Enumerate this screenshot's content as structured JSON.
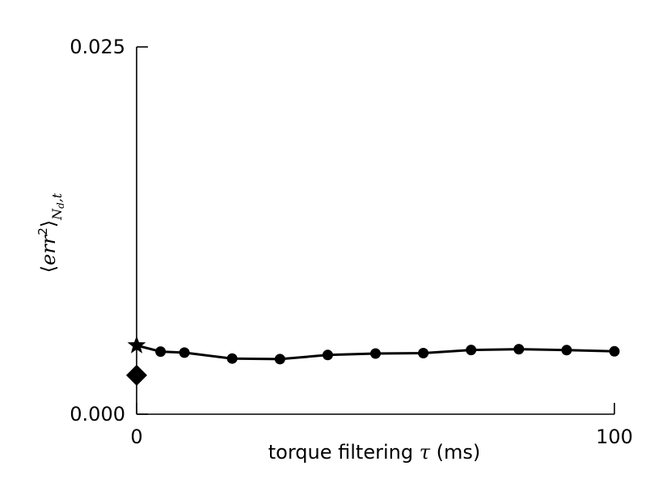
{
  "chart_data": {
    "type": "line",
    "title": "",
    "xlabel": {
      "text": "torque filtering ",
      "symbol": "τ",
      "unit": " (ms)"
    },
    "ylabel": {
      "open": "⟨",
      "base": "err",
      "sup": "2",
      "close": "⟩",
      "sub": "N",
      "subsub": "d",
      "subtail": ",t"
    },
    "xlim": [
      0,
      100
    ],
    "ylim": [
      0.0,
      0.025
    ],
    "xticks": [
      "0",
      "100"
    ],
    "yticks": [
      "0.000",
      "0.025"
    ],
    "grid": false,
    "series": [
      {
        "marker": "circle",
        "color": "#000000",
        "x": [
          5,
          10,
          20,
          30,
          40,
          50,
          60,
          70,
          80,
          90,
          100
        ],
        "y": [
          0.00426,
          0.00419,
          0.00379,
          0.00375,
          0.00403,
          0.00413,
          0.00416,
          0.00437,
          0.00443,
          0.00436,
          0.00428
        ]
      }
    ],
    "markers": [
      {
        "shape": "star",
        "x": 0,
        "y": 0.00468,
        "color": "#000000"
      },
      {
        "shape": "diamond",
        "x": 0,
        "y": 0.00265,
        "color": "#000000"
      }
    ]
  }
}
